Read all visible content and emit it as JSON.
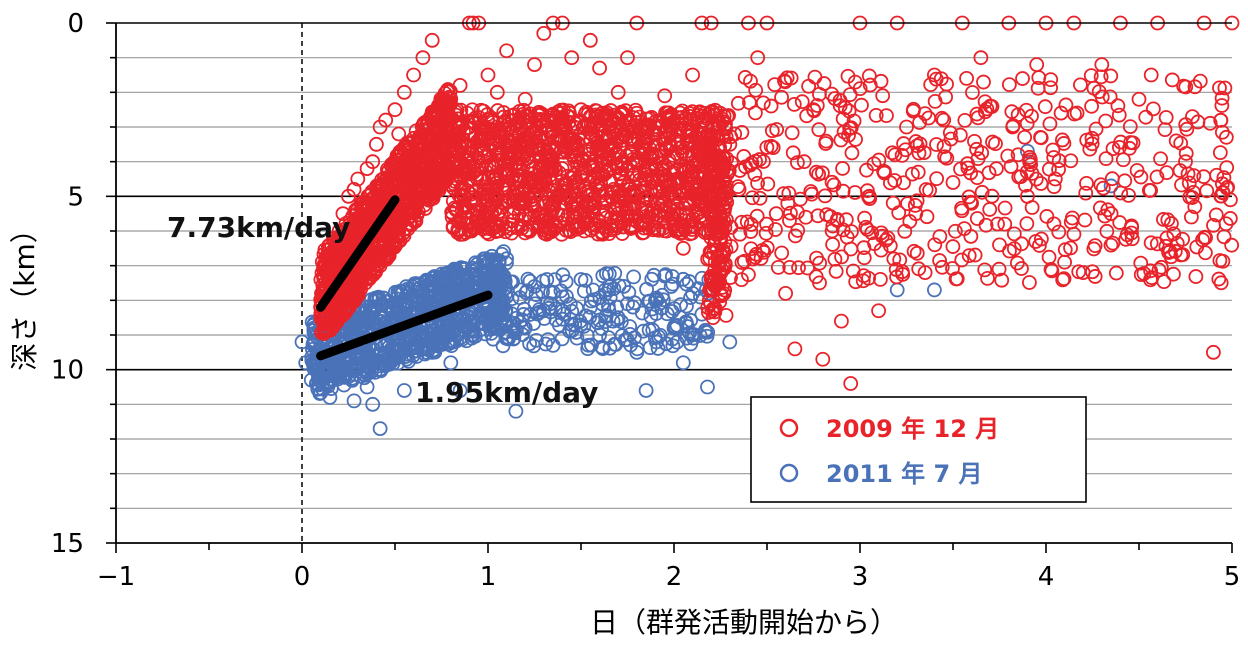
{
  "chart_data": {
    "type": "scatter",
    "title": "",
    "xlabel": "日（群発活動開始から）",
    "ylabel": "深さ（km）",
    "xlim": [
      -1,
      5
    ],
    "ylim": [
      0,
      15
    ],
    "y_inverted": true,
    "x_ticks": [
      "−1",
      "0",
      "1",
      "2",
      "3",
      "4",
      "5"
    ],
    "y_ticks": [
      "0",
      "5",
      "10",
      "15"
    ],
    "grid": "horizontal every 1 km, major every 5 km",
    "reference_line": {
      "x": 0,
      "style": "dashed"
    },
    "legend_placement": "lower-right",
    "series": [
      {
        "name": "2009 年 12 月",
        "color": "#e8232a",
        "points": [
          [
            0.1,
            8.2
          ],
          [
            0.12,
            7.8
          ],
          [
            0.15,
            7.0
          ],
          [
            0.18,
            6.5
          ],
          [
            0.2,
            6.0
          ],
          [
            0.22,
            5.5
          ],
          [
            0.25,
            5.0
          ],
          [
            0.28,
            4.8
          ],
          [
            0.3,
            4.5
          ],
          [
            0.32,
            5.2
          ],
          [
            0.35,
            4.2
          ],
          [
            0.38,
            4.0
          ],
          [
            0.4,
            3.5
          ],
          [
            0.42,
            3.0
          ],
          [
            0.45,
            2.8
          ],
          [
            0.5,
            2.5
          ],
          [
            0.52,
            3.2
          ],
          [
            0.55,
            2.0
          ],
          [
            0.6,
            1.5
          ],
          [
            0.65,
            1.0
          ],
          [
            0.7,
            0.5
          ],
          [
            0.75,
            2.5
          ],
          [
            0.8,
            3.0
          ],
          [
            0.85,
            1.8
          ],
          [
            0.9,
            0.0
          ],
          [
            0.92,
            0.0
          ],
          [
            0.95,
            0.0
          ],
          [
            1.0,
            1.5
          ],
          [
            1.05,
            2.0
          ],
          [
            1.1,
            0.8
          ],
          [
            1.15,
            3.5
          ],
          [
            1.2,
            2.2
          ],
          [
            1.25,
            1.2
          ],
          [
            1.3,
            0.3
          ],
          [
            1.35,
            0.0
          ],
          [
            1.4,
            0.0
          ],
          [
            1.45,
            1.0
          ],
          [
            1.5,
            2.5
          ],
          [
            1.55,
            0.5
          ],
          [
            1.6,
            1.3
          ],
          [
            1.65,
            3.8
          ],
          [
            1.7,
            2.0
          ],
          [
            1.75,
            1.0
          ],
          [
            1.8,
            0.0
          ],
          [
            1.85,
            4.5
          ],
          [
            1.9,
            3.2
          ],
          [
            1.95,
            2.1
          ],
          [
            2.0,
            5.8
          ],
          [
            2.05,
            6.5
          ],
          [
            2.1,
            1.5
          ],
          [
            2.15,
            0.0
          ],
          [
            2.2,
            0.0
          ],
          [
            2.22,
            6.2
          ],
          [
            2.24,
            7.0
          ],
          [
            2.25,
            7.8
          ],
          [
            2.3,
            3.5
          ],
          [
            2.35,
            4.8
          ],
          [
            2.4,
            0.0
          ],
          [
            2.45,
            1.0
          ],
          [
            2.5,
            0.0
          ],
          [
            2.55,
            5.5
          ],
          [
            2.6,
            7.8
          ],
          [
            2.65,
            9.4
          ],
          [
            2.7,
            4.0
          ],
          [
            2.75,
            2.5
          ],
          [
            2.8,
            9.7
          ],
          [
            2.85,
            6.0
          ],
          [
            2.9,
            8.6
          ],
          [
            2.95,
            10.4
          ],
          [
            3.0,
            0.0
          ],
          [
            3.05,
            5.0
          ],
          [
            3.1,
            8.3
          ],
          [
            3.15,
            6.2
          ],
          [
            3.2,
            0.0
          ],
          [
            3.25,
            3.0
          ],
          [
            3.3,
            5.5
          ],
          [
            3.35,
            7.2
          ],
          [
            3.4,
            1.5
          ],
          [
            3.45,
            2.8
          ],
          [
            3.5,
            4.6
          ],
          [
            3.55,
            0.0
          ],
          [
            3.6,
            5.2
          ],
          [
            3.65,
            1.0
          ],
          [
            3.7,
            2.4
          ],
          [
            3.75,
            6.4
          ],
          [
            3.8,
            0.0
          ],
          [
            3.85,
            3.8
          ],
          [
            3.9,
            5.0
          ],
          [
            3.95,
            1.2
          ],
          [
            4.0,
            0.0
          ],
          [
            4.05,
            4.5
          ],
          [
            4.1,
            6.9
          ],
          [
            4.15,
            0.0
          ],
          [
            4.2,
            7.2
          ],
          [
            4.3,
            1.2
          ],
          [
            4.35,
            5.5
          ],
          [
            4.4,
            0.0
          ],
          [
            4.5,
            2.2
          ],
          [
            4.6,
            0.0
          ],
          [
            4.65,
            6.2
          ],
          [
            4.7,
            3.4
          ],
          [
            4.75,
            4.0
          ],
          [
            4.8,
            5.3
          ],
          [
            4.85,
            0.0
          ],
          [
            4.9,
            9.5
          ],
          [
            4.95,
            4.9
          ],
          [
            5.0,
            0.0
          ]
        ]
      },
      {
        "name": "2011 年 7 月",
        "color": "#4a72b8",
        "points": [
          [
            0.0,
            9.2
          ],
          [
            0.02,
            9.8
          ],
          [
            0.05,
            10.3
          ],
          [
            0.08,
            9.5
          ],
          [
            0.1,
            9.0
          ],
          [
            0.12,
            10.0
          ],
          [
            0.15,
            10.8
          ],
          [
            0.18,
            9.3
          ],
          [
            0.2,
            9.7
          ],
          [
            0.22,
            8.8
          ],
          [
            0.25,
            10.2
          ],
          [
            0.28,
            10.9
          ],
          [
            0.3,
            9.1
          ],
          [
            0.32,
            8.5
          ],
          [
            0.35,
            10.5
          ],
          [
            0.38,
            11.0
          ],
          [
            0.4,
            9.6
          ],
          [
            0.42,
            11.7
          ],
          [
            0.45,
            8.9
          ],
          [
            0.48,
            9.4
          ],
          [
            0.5,
            8.6
          ],
          [
            0.55,
            10.6
          ],
          [
            0.6,
            9.0
          ],
          [
            0.65,
            8.2
          ],
          [
            0.7,
            9.5
          ],
          [
            0.75,
            8.0
          ],
          [
            0.8,
            9.8
          ],
          [
            0.85,
            10.6
          ],
          [
            0.9,
            8.4
          ],
          [
            0.95,
            7.5
          ],
          [
            1.0,
            8.1
          ],
          [
            1.05,
            7.2
          ],
          [
            1.1,
            6.8
          ],
          [
            1.15,
            11.2
          ],
          [
            1.2,
            8.8
          ],
          [
            1.25,
            7.6
          ],
          [
            1.3,
            8.3
          ],
          [
            1.35,
            9.3
          ],
          [
            1.4,
            7.9
          ],
          [
            1.45,
            8.7
          ],
          [
            1.5,
            7.4
          ],
          [
            1.55,
            8.2
          ],
          [
            1.6,
            9.0
          ],
          [
            1.65,
            7.7
          ],
          [
            1.7,
            8.5
          ],
          [
            1.75,
            8.1
          ],
          [
            1.8,
            9.5
          ],
          [
            1.85,
            10.6
          ],
          [
            1.9,
            8.0
          ],
          [
            1.95,
            7.3
          ],
          [
            2.0,
            8.8
          ],
          [
            2.05,
            9.8
          ],
          [
            2.1,
            7.8
          ],
          [
            2.15,
            8.4
          ],
          [
            2.18,
            10.5
          ],
          [
            2.3,
            9.2
          ],
          [
            3.2,
            7.7
          ],
          [
            3.4,
            7.7
          ],
          [
            3.9,
            3.7
          ],
          [
            4.35,
            4.7
          ]
        ]
      }
    ],
    "trend_lines": [
      {
        "label": "7.73km/day",
        "from": [
          0.1,
          8.2
        ],
        "to": [
          0.5,
          5.1
        ]
      },
      {
        "label": "1.95km/day",
        "from": [
          0.1,
          9.6
        ],
        "to": [
          1.0,
          7.85
        ]
      }
    ]
  }
}
